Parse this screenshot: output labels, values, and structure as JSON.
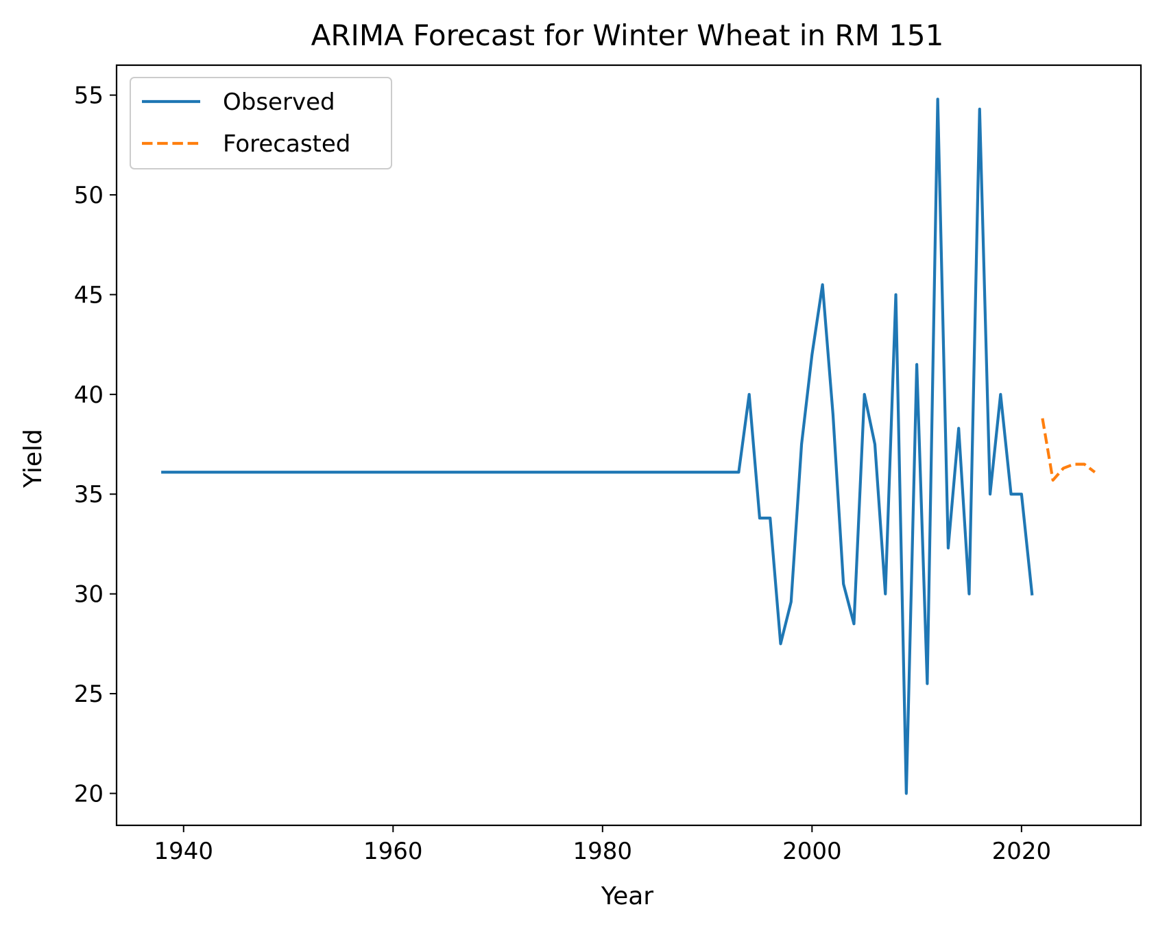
{
  "chart_data": {
    "type": "line",
    "title": "ARIMA Forecast for Winter Wheat in RM 151",
    "xlabel": "Year",
    "ylabel": "Yield",
    "xlim": [
      1933.6,
      2031.4
    ],
    "ylim": [
      18.4,
      56.5
    ],
    "xticks": [
      1940,
      1960,
      1980,
      2000,
      2020
    ],
    "yticks": [
      20,
      25,
      30,
      35,
      40,
      45,
      50,
      55
    ],
    "grid": false,
    "legend_position": "top-left",
    "series": [
      {
        "name": "Observed",
        "color": "#1f77b4",
        "style": "solid",
        "points": [
          [
            1938,
            36.1
          ],
          [
            1993,
            36.1
          ],
          [
            1994,
            40.0
          ],
          [
            1995,
            33.8
          ],
          [
            1996,
            33.8
          ],
          [
            1997,
            27.5
          ],
          [
            1998,
            29.6
          ],
          [
            1999,
            37.5
          ],
          [
            2000,
            42.0
          ],
          [
            2001,
            45.5
          ],
          [
            2002,
            39.0
          ],
          [
            2003,
            30.5
          ],
          [
            2004,
            28.5
          ],
          [
            2005,
            40.0
          ],
          [
            2006,
            37.5
          ],
          [
            2007,
            30.0
          ],
          [
            2008,
            45.0
          ],
          [
            2009,
            20.0
          ],
          [
            2010,
            41.5
          ],
          [
            2011,
            25.5
          ],
          [
            2012,
            54.8
          ],
          [
            2013,
            32.3
          ],
          [
            2014,
            38.3
          ],
          [
            2015,
            30.0
          ],
          [
            2016,
            54.3
          ],
          [
            2017,
            35.0
          ],
          [
            2018,
            40.0
          ],
          [
            2019,
            35.0
          ],
          [
            2020,
            35.0
          ],
          [
            2021,
            30.0
          ]
        ]
      },
      {
        "name": "Forecasted",
        "color": "#ff7f0e",
        "style": "dashed",
        "points": [
          [
            2022,
            38.8
          ],
          [
            2023,
            35.7
          ],
          [
            2024,
            36.3
          ],
          [
            2025,
            36.5
          ],
          [
            2026,
            36.5
          ],
          [
            2027,
            36.1
          ]
        ]
      }
    ]
  }
}
